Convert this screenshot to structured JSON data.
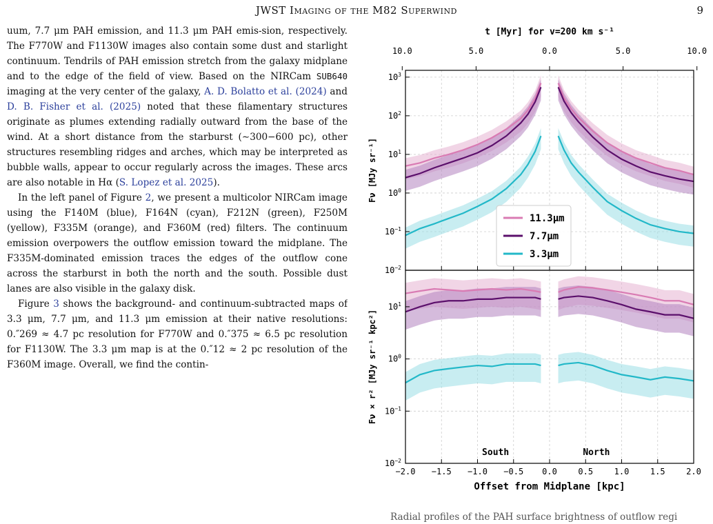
{
  "header": {
    "running_title": "JWST Imaging of the M82 Superwind",
    "page_number": "9"
  },
  "body_text": {
    "p1_a": "uum, 7.7 μm PAH emission, and 11.3 μm PAH emis-sion, respectively. The F770W and F1130W images also contain some dust and starlight continuum. Tendrils of PAH emission stretch from the galaxy midplane and to the edge of the field of view. Based on the NIRCam",
    "p1_mono": "SUB640",
    "p1_b": " imaging at the very center of the galaxy, ",
    "cite1": "A. D. Bolatto et al. (2024)",
    "p1_c": " and ",
    "cite2": "D. B. Fisher et al. (2025)",
    "p1_d": " noted that these filamentary structures originate as plumes extending radially outward from the base of the wind. At a short distance from the starburst (∼300−600 pc), other structures resembling ridges and arches, which may be interpreted as bubble walls, appear to occur regularly across the images. These arcs are also notable in Hα (",
    "cite3": "S. Lopez et al. 2025",
    "p1_e": ").",
    "p2_a": "In the left panel of Figure ",
    "p2_fig": "2",
    "p2_b": ", we present a multicolor NIRCam image using the F140M (blue), F164N (cyan), F212N (green), F250M (yellow), F335M (orange), and F360M (red) filters. The continuum emission overpowers the outflow emission toward the midplane. The F335M-dominated emission traces the edges of the outflow cone across the starburst in both the north and the south. Possible dust lanes are also visible in the galaxy disk.",
    "p3_a": "Figure ",
    "p3_fig": "3",
    "p3_b": " shows the background- and continuum-subtracted maps of 3.3 μm, 7.7 μm, and 11.3 μm emission at their native resolutions: 0.″269 ≈ 4.7 pc resolution for F770W and 0.″375 ≈ 6.5 pc resolution for F1130W. The 3.3 μm map is at the 0.″12 ≈ 2 pc resolution of the F360M image. Overall, we find the contin-",
    "caption_fragment": "Radial profiles of the PAH surface brightness of outflow regi"
  },
  "chart_data": {
    "type": "line",
    "top_axis_label": "t [Myr] for v=200 km s⁻¹",
    "top_ticks": [
      "10.0",
      "5.0",
      "0.0",
      "5.0",
      "10.0"
    ],
    "top_tick_positions_kpc": [
      -2.045,
      -1.02,
      0.0,
      1.02,
      2.045
    ],
    "xlabel": "Offset from Midplane [kpc]",
    "xlim": [
      -2.0,
      2.0
    ],
    "xticks": [
      "−2.0",
      "−1.5",
      "−1.0",
      "−0.5",
      "0.0",
      "0.5",
      "1.0",
      "1.5",
      "2.0"
    ],
    "xtick_values": [
      -2.0,
      -1.5,
      -1.0,
      -0.5,
      0.0,
      0.5,
      1.0,
      1.5,
      2.0
    ],
    "region_labels": [
      "South",
      "North"
    ],
    "grid": true,
    "panels": [
      {
        "ylabel": "Fν [MJy sr⁻¹]",
        "scale": "log",
        "ylim": [
          0.01,
          1500
        ],
        "yticks": [
          {
            "v": 1000,
            "b": "10",
            "e": "3"
          },
          {
            "v": 100,
            "b": "10",
            "e": "2"
          },
          {
            "v": 10,
            "b": "10",
            "e": "1"
          },
          {
            "v": 1,
            "b": "10",
            "e": "0"
          },
          {
            "v": 0.1,
            "b": "10",
            "e": "−1"
          },
          {
            "v": 0.01,
            "b": "10",
            "e": "−2"
          }
        ],
        "legend": {
          "placement": "center-right",
          "entries": [
            "11.3μm",
            "7.7μm",
            "3.3μm"
          ]
        },
        "series": [
          {
            "name": "11.3μm",
            "color": "#d97bb3",
            "band": "#e6b3d1",
            "south": [
              [
                -2.0,
                5
              ],
              [
                -1.8,
                6
              ],
              [
                -1.6,
                8
              ],
              [
                -1.4,
                10
              ],
              [
                -1.2,
                13
              ],
              [
                -1.0,
                18
              ],
              [
                -0.8,
                27
              ],
              [
                -0.6,
                45
              ],
              [
                -0.4,
                85
              ],
              [
                -0.3,
                140
              ],
              [
                -0.2,
                280
              ],
              [
                -0.12,
                700
              ]
            ],
            "north": [
              [
                0.12,
                700
              ],
              [
                0.2,
                290
              ],
              [
                0.3,
                150
              ],
              [
                0.4,
                90
              ],
              [
                0.6,
                40
              ],
              [
                0.8,
                20
              ],
              [
                1.0,
                12
              ],
              [
                1.2,
                8
              ],
              [
                1.4,
                6
              ],
              [
                1.6,
                4.5
              ],
              [
                1.8,
                3.8
              ],
              [
                2.0,
                3
              ]
            ]
          },
          {
            "name": "7.7μm",
            "color": "#5b0f6b",
            "band": "#b383bf",
            "south": [
              [
                -2.0,
                2.5
              ],
              [
                -1.8,
                3.2
              ],
              [
                -1.6,
                4.5
              ],
              [
                -1.4,
                6
              ],
              [
                -1.2,
                8
              ],
              [
                -1.0,
                11
              ],
              [
                -0.8,
                17
              ],
              [
                -0.6,
                30
              ],
              [
                -0.4,
                65
              ],
              [
                -0.3,
                110
              ],
              [
                -0.2,
                230
              ],
              [
                -0.12,
                550
              ]
            ],
            "north": [
              [
                0.12,
                550
              ],
              [
                0.2,
                240
              ],
              [
                0.3,
                120
              ],
              [
                0.4,
                70
              ],
              [
                0.6,
                28
              ],
              [
                0.8,
                13
              ],
              [
                1.0,
                7.5
              ],
              [
                1.2,
                5
              ],
              [
                1.4,
                3.5
              ],
              [
                1.6,
                2.8
              ],
              [
                1.8,
                2.3
              ],
              [
                2.0,
                2
              ]
            ]
          },
          {
            "name": "3.3μm",
            "color": "#22b8c8",
            "band": "#9adfe6",
            "south": [
              [
                -2.0,
                0.08
              ],
              [
                -1.8,
                0.12
              ],
              [
                -1.6,
                0.16
              ],
              [
                -1.4,
                0.22
              ],
              [
                -1.2,
                0.3
              ],
              [
                -1.0,
                0.45
              ],
              [
                -0.8,
                0.7
              ],
              [
                -0.6,
                1.3
              ],
              [
                -0.4,
                3
              ],
              [
                -0.3,
                5.5
              ],
              [
                -0.2,
                12
              ],
              [
                -0.12,
                30
              ]
            ],
            "north": [
              [
                0.12,
                30
              ],
              [
                0.2,
                13
              ],
              [
                0.3,
                6
              ],
              [
                0.4,
                3.5
              ],
              [
                0.6,
                1.4
              ],
              [
                0.8,
                0.6
              ],
              [
                1.0,
                0.35
              ],
              [
                1.2,
                0.22
              ],
              [
                1.4,
                0.15
              ],
              [
                1.6,
                0.12
              ],
              [
                1.8,
                0.1
              ],
              [
                2.0,
                0.09
              ]
            ]
          }
        ]
      },
      {
        "ylabel": "Fν × r² [MJy sr⁻¹ kpc²]",
        "scale": "log",
        "ylim": [
          0.01,
          50
        ],
        "yticks": [
          {
            "v": 10,
            "b": "10",
            "e": "1"
          },
          {
            "v": 1,
            "b": "10",
            "e": "0"
          },
          {
            "v": 0.1,
            "b": "10",
            "e": "−1"
          },
          {
            "v": 0.01,
            "b": "10",
            "e": "−2"
          }
        ],
        "series": [
          {
            "name": "11.3μm",
            "color": "#d97bb3",
            "band": "#e6b3d1",
            "south": [
              [
                -2.0,
                18
              ],
              [
                -1.8,
                20
              ],
              [
                -1.6,
                22
              ],
              [
                -1.4,
                21
              ],
              [
                -1.2,
                20
              ],
              [
                -1.0,
                21
              ],
              [
                -0.8,
                22
              ],
              [
                -0.6,
                21
              ],
              [
                -0.4,
                22
              ],
              [
                -0.2,
                20
              ],
              [
                -0.12,
                19
              ]
            ],
            "north": [
              [
                0.12,
                19
              ],
              [
                0.2,
                21
              ],
              [
                0.4,
                24
              ],
              [
                0.6,
                23
              ],
              [
                0.8,
                21
              ],
              [
                1.0,
                19
              ],
              [
                1.2,
                17
              ],
              [
                1.4,
                15
              ],
              [
                1.6,
                13
              ],
              [
                1.8,
                13
              ],
              [
                2.0,
                11
              ]
            ]
          },
          {
            "name": "7.7μm",
            "color": "#5b0f6b",
            "band": "#b383bf",
            "south": [
              [
                -2.0,
                8
              ],
              [
                -1.8,
                10
              ],
              [
                -1.6,
                12
              ],
              [
                -1.4,
                13
              ],
              [
                -1.2,
                13
              ],
              [
                -1.0,
                14
              ],
              [
                -0.8,
                14
              ],
              [
                -0.6,
                15
              ],
              [
                -0.4,
                15
              ],
              [
                -0.2,
                15
              ],
              [
                -0.12,
                14
              ]
            ],
            "north": [
              [
                0.12,
                14
              ],
              [
                0.2,
                15
              ],
              [
                0.4,
                16
              ],
              [
                0.6,
                15
              ],
              [
                0.8,
                13
              ],
              [
                1.0,
                11
              ],
              [
                1.2,
                9
              ],
              [
                1.4,
                8
              ],
              [
                1.6,
                7
              ],
              [
                1.8,
                7
              ],
              [
                2.0,
                6
              ]
            ]
          },
          {
            "name": "3.3μm",
            "color": "#22b8c8",
            "band": "#9adfe6",
            "south": [
              [
                -2.0,
                0.35
              ],
              [
                -1.8,
                0.5
              ],
              [
                -1.6,
                0.6
              ],
              [
                -1.4,
                0.65
              ],
              [
                -1.2,
                0.7
              ],
              [
                -1.0,
                0.75
              ],
              [
                -0.8,
                0.72
              ],
              [
                -0.6,
                0.8
              ],
              [
                -0.4,
                0.8
              ],
              [
                -0.2,
                0.8
              ],
              [
                -0.12,
                0.75
              ]
            ],
            "north": [
              [
                0.12,
                0.75
              ],
              [
                0.2,
                0.8
              ],
              [
                0.4,
                0.85
              ],
              [
                0.6,
                0.75
              ],
              [
                0.8,
                0.6
              ],
              [
                1.0,
                0.5
              ],
              [
                1.2,
                0.45
              ],
              [
                1.4,
                0.4
              ],
              [
                1.6,
                0.45
              ],
              [
                1.8,
                0.42
              ],
              [
                2.0,
                0.38
              ]
            ]
          }
        ]
      }
    ]
  }
}
